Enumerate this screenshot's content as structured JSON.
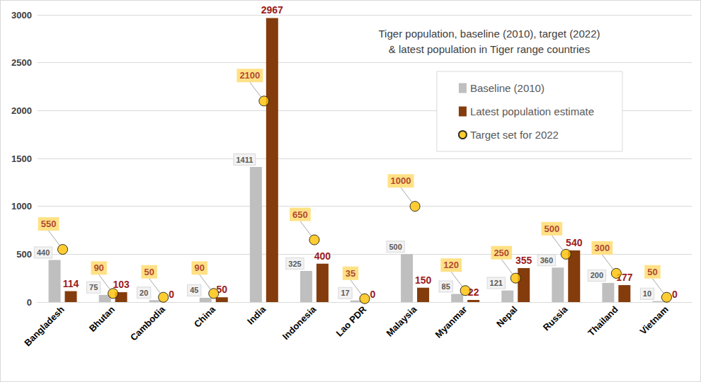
{
  "chart_data": {
    "type": "bar",
    "title": "Tiger population, baseline (2010), target (2022)\n& latest population in Tiger range countries",
    "categories": [
      "Bangladesh",
      "Bhutan",
      "Cambodia",
      "China",
      "India",
      "Indonesia",
      "Lao PDR",
      "Malaysia",
      "Myanmar",
      "Nepal",
      "Russia",
      "Thailand",
      "Vietnam"
    ],
    "series": [
      {
        "name": "Baseline (2010)",
        "type": "bar",
        "color": "#bfbfbf",
        "values": [
          440,
          75,
          20,
          45,
          1411,
          325,
          17,
          500,
          85,
          121,
          360,
          200,
          10
        ]
      },
      {
        "name": "Latest population estimate",
        "type": "bar",
        "color": "#843c0c",
        "values": [
          114,
          103,
          0,
          50,
          2967,
          400,
          0,
          150,
          22,
          355,
          540,
          177,
          0
        ]
      },
      {
        "name": "Target set for 2022",
        "type": "scatter",
        "color": "#ffc000",
        "marker": "circle",
        "values": [
          550,
          90,
          50,
          90,
          2100,
          650,
          35,
          1000,
          120,
          250,
          500,
          300,
          50
        ]
      }
    ],
    "ylim": [
      0,
      3000
    ],
    "yticks": [
      0,
      500,
      1000,
      1500,
      2000,
      2500,
      3000
    ],
    "grid": true,
    "legend": "upper right",
    "data_labels": true
  }
}
